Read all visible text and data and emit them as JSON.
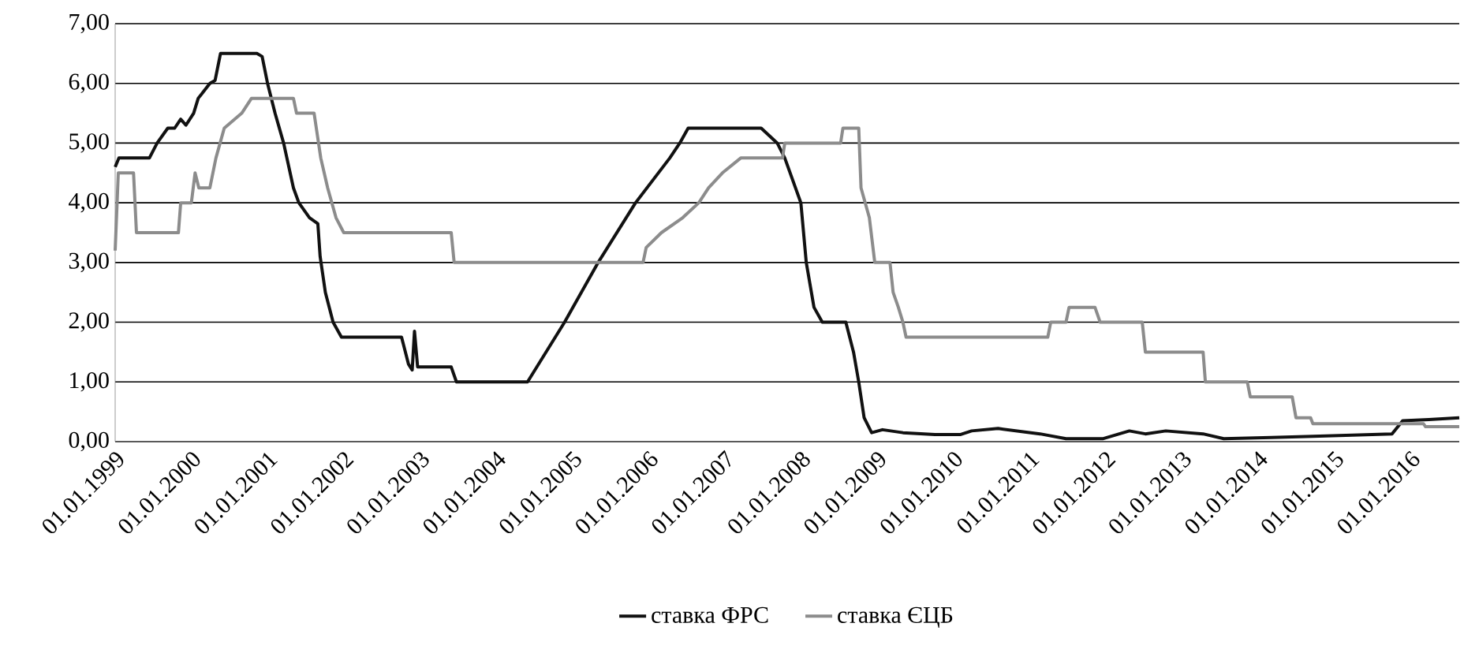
{
  "chart_data": {
    "type": "line",
    "xlim": [
      "1999-01-01",
      "2016-08-23"
    ],
    "xticks": [
      {
        "value": "1999-01-01",
        "label": "01.01.1999"
      },
      {
        "value": "2000-01-01",
        "label": "01.01.2000"
      },
      {
        "value": "2001-01-01",
        "label": "01.01.2001"
      },
      {
        "value": "2002-01-01",
        "label": "01.01.2002"
      },
      {
        "value": "2003-01-01",
        "label": "01.01.2003"
      },
      {
        "value": "2004-01-01",
        "label": "01.01.2004"
      },
      {
        "value": "2005-01-01",
        "label": "01.01.2005"
      },
      {
        "value": "2006-01-01",
        "label": "01.01.2006"
      },
      {
        "value": "2007-01-01",
        "label": "01.01.2007"
      },
      {
        "value": "2008-01-01",
        "label": "01.01.2008"
      },
      {
        "value": "2009-01-01",
        "label": "01.01.2009"
      },
      {
        "value": "2010-01-01",
        "label": "01.01.2010"
      },
      {
        "value": "2011-01-01",
        "label": "01.01.2011"
      },
      {
        "value": "2012-01-01",
        "label": "01.01.2012"
      },
      {
        "value": "2013-01-01",
        "label": "01.01.2013"
      },
      {
        "value": "2014-01-01",
        "label": "01.01.2014"
      },
      {
        "value": "2015-01-01",
        "label": "01.01.2015"
      },
      {
        "value": "2016-01-01",
        "label": "01.01.2016"
      }
    ],
    "ylim": [
      0,
      7
    ],
    "yticks": [
      {
        "value": 0,
        "label": "0,00"
      },
      {
        "value": 1,
        "label": "1,00"
      },
      {
        "value": 2,
        "label": "2,00"
      },
      {
        "value": 3,
        "label": "3,00"
      },
      {
        "value": 4,
        "label": "4,00"
      },
      {
        "value": 5,
        "label": "5,00"
      },
      {
        "value": 6,
        "label": "6,00"
      },
      {
        "value": 7,
        "label": "7,00"
      }
    ],
    "grid": "y",
    "legend": "bottom",
    "marker": "none",
    "line_style": "solid",
    "series": [
      {
        "name": "ставка ФРС",
        "color": "#111111",
        "x": [
          "1999-01-01",
          "1999-01-19",
          "1999-02-06",
          "1999-06-14",
          "1999-07-21",
          "1999-09-10",
          "1999-10-13",
          "1999-11-11",
          "1999-12-06",
          "2000-01-12",
          "2000-02-03",
          "2000-03-30",
          "2000-04-24",
          "2000-05-20",
          "2000-11-11",
          "2000-12-06",
          "2001-01-01",
          "2001-02-06",
          "2001-03-19",
          "2001-05-05",
          "2001-05-31",
          "2001-07-21",
          "2001-08-30",
          "2001-09-10",
          "2001-10-05",
          "2001-11-11",
          "2001-12-21",
          "2002-10-05",
          "2002-11-07",
          "2002-11-25",
          "2002-12-06",
          "2002-12-21",
          "2003-05-31",
          "2003-06-25",
          "2004-05-31",
          "2004-11-25",
          "2005-05-05",
          "2005-10-31",
          "2006-04-13",
          "2006-05-31",
          "2006-07-10",
          "2007-06-25",
          "2007-09-10",
          "2007-10-16",
          "2008-01-01",
          "2008-01-27",
          "2008-03-04",
          "2008-04-13",
          "2008-08-04",
          "2008-09-10",
          "2008-10-05",
          "2008-10-31",
          "2008-12-06",
          "2009-01-27",
          "2009-05-05",
          "2009-10-05",
          "2010-02-06",
          "2010-03-30",
          "2010-08-04",
          "2011-02-21",
          "2011-06-25",
          "2011-12-21",
          "2012-04-24",
          "2012-07-10",
          "2012-10-16",
          "2013-04-13",
          "2013-07-21",
          "2014-03-04",
          "2014-09-21",
          "2015-10-05",
          "2015-11-25",
          "2016-03-30",
          "2016-08-23"
        ],
        "values": [
          4.6,
          4.75,
          4.75,
          4.75,
          5.0,
          5.25,
          5.25,
          5.4,
          5.3,
          5.5,
          5.75,
          6.0,
          6.05,
          6.5,
          6.5,
          6.45,
          6.0,
          5.5,
          5.0,
          4.25,
          4.0,
          3.75,
          3.65,
          3.1,
          2.5,
          2.0,
          1.75,
          1.75,
          1.3,
          1.2,
          1.85,
          1.25,
          1.25,
          1.0,
          1.0,
          2.0,
          3.0,
          4.0,
          4.75,
          5.0,
          5.25,
          5.25,
          5.0,
          4.75,
          4.0,
          3.0,
          2.25,
          2.0,
          2.0,
          1.5,
          1.0,
          0.4,
          0.15,
          0.2,
          0.15,
          0.12,
          0.12,
          0.18,
          0.22,
          0.13,
          0.05,
          0.05,
          0.18,
          0.13,
          0.18,
          0.13,
          0.05,
          0.07,
          0.09,
          0.13,
          0.35,
          0.37,
          0.4
        ]
      },
      {
        "name": "ставка ЄЦБ",
        "color": "#8c8c8c",
        "x": [
          "1999-01-01",
          "1999-01-16",
          "1999-03-30",
          "1999-04-13",
          "1999-10-31",
          "1999-11-11",
          "2000-01-01",
          "2000-01-19",
          "2000-02-06",
          "2000-03-30",
          "2000-04-28",
          "2000-06-07",
          "2000-08-30",
          "2000-10-16",
          "2001-05-05",
          "2001-05-20",
          "2001-08-12",
          "2001-09-13",
          "2001-10-16",
          "2001-11-25",
          "2002-01-01",
          "2003-05-31",
          "2003-06-14",
          "2005-12-06",
          "2005-12-21",
          "2006-03-04",
          "2006-06-14",
          "2006-08-30",
          "2006-10-16",
          "2006-12-21",
          "2007-03-19",
          "2007-10-05",
          "2007-10-16",
          "2008-07-10",
          "2008-07-21",
          "2008-10-05",
          "2008-10-16",
          "2008-11-25",
          "2008-12-21",
          "2009-03-04",
          "2009-03-19",
          "2009-04-13",
          "2009-05-05",
          "2009-05-20",
          "2011-03-30",
          "2011-04-13",
          "2011-06-25",
          "2011-07-10",
          "2011-11-11",
          "2011-12-06",
          "2012-06-25",
          "2012-07-10",
          "2013-04-13",
          "2013-04-24",
          "2013-11-11",
          "2013-11-25",
          "2014-06-14",
          "2014-07-02",
          "2014-09-10",
          "2014-09-21",
          "2016-03-04",
          "2016-03-14",
          "2016-08-23"
        ],
        "values": [
          3.2,
          4.5,
          4.5,
          3.5,
          3.5,
          4.0,
          4.0,
          4.5,
          4.25,
          4.25,
          4.75,
          5.25,
          5.5,
          5.75,
          5.75,
          5.5,
          5.5,
          4.75,
          4.25,
          3.75,
          3.5,
          3.5,
          3.0,
          3.0,
          3.25,
          3.5,
          3.75,
          4.0,
          4.25,
          4.5,
          4.75,
          4.75,
          5.0,
          5.0,
          5.25,
          5.25,
          4.25,
          3.75,
          3.0,
          3.0,
          2.5,
          2.25,
          2.0,
          1.75,
          1.75,
          2.0,
          2.0,
          2.25,
          2.25,
          2.0,
          2.0,
          1.5,
          1.5,
          1.0,
          1.0,
          0.75,
          0.75,
          0.4,
          0.4,
          0.3,
          0.3,
          0.25,
          0.25
        ]
      }
    ]
  }
}
